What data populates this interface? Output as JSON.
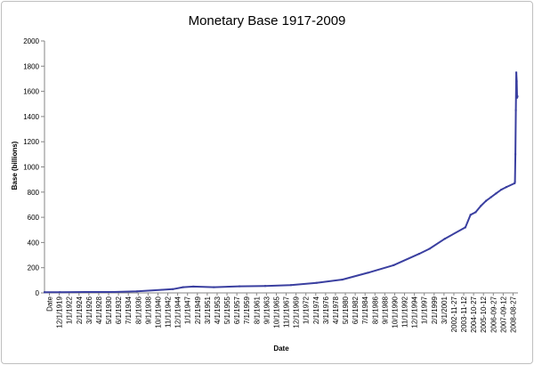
{
  "chart_data": {
    "type": "line",
    "title": "Monetary Base 1917-2009",
    "xlabel": "Date",
    "ylabel": "Base (billions)",
    "ylim": [
      0,
      2000
    ],
    "y_ticks": [
      "0",
      "200",
      "400",
      "600",
      "800",
      "1000",
      "1200",
      "1400",
      "1600",
      "1800",
      "2000"
    ],
    "x_tick_labels": [
      "Date",
      "12/1/1919",
      "1/1/1922",
      "2/1/1924",
      "3/1/1926",
      "4/1/1928",
      "5/1/1930",
      "6/1/1932",
      "7/1/1934",
      "8/1/1936",
      "9/1/1938",
      "10/1/1940",
      "11/1/1942",
      "12/1/1944",
      "1/1/1947",
      "2/1/1949",
      "3/1/1951",
      "4/1/1953",
      "5/1/1955",
      "6/1/1957",
      "7/1/1959",
      "8/1/1961",
      "9/1/1963",
      "10/1/1965",
      "11/1/1967",
      "12/1/1969",
      "1/1/1972",
      "2/1/1974",
      "3/1/1976",
      "4/1/1978",
      "5/1/1980",
      "6/1/1982",
      "7/1/1984",
      "8/1/1986",
      "9/1/1988",
      "10/1/1990",
      "11/1/1992",
      "12/1/1994",
      "1/1/1997",
      "2/1/1999",
      "3/1/2001",
      "2002-11-27",
      "2003-11-12",
      "2004-10-27",
      "2005-10-12",
      "2006-09-27",
      "2007-09-12",
      "2008-08-27"
    ],
    "grid": false,
    "legend": "none",
    "series_color": "#3a3fa0",
    "series": [
      {
        "x": [
          "1917",
          "1920",
          "1925",
          "1930",
          "1935",
          "1940",
          "1942",
          "1944",
          "1946",
          "1950",
          "1955",
          "1960",
          "1965",
          "1970",
          "1975",
          "1980",
          "1985",
          "1990",
          "1992",
          "1995",
          "1999",
          "2000",
          "2001",
          "2002",
          "2003",
          "2004",
          "2005",
          "2006",
          "2007",
          "2008-08",
          "2008-09",
          "2008-10",
          "2008-11",
          "2008-12",
          "2009-01",
          "2009-02",
          "2009-03"
        ],
        "values": [
          5,
          6,
          7,
          7,
          12,
          25,
          30,
          45,
          50,
          45,
          52,
          55,
          62,
          80,
          105,
          160,
          220,
          310,
          350,
          430,
          520,
          620,
          640,
          690,
          730,
          760,
          790,
          820,
          840,
          870,
          880,
          1100,
          1450,
          1750,
          1680,
          1550,
          1560
        ]
      }
    ]
  }
}
